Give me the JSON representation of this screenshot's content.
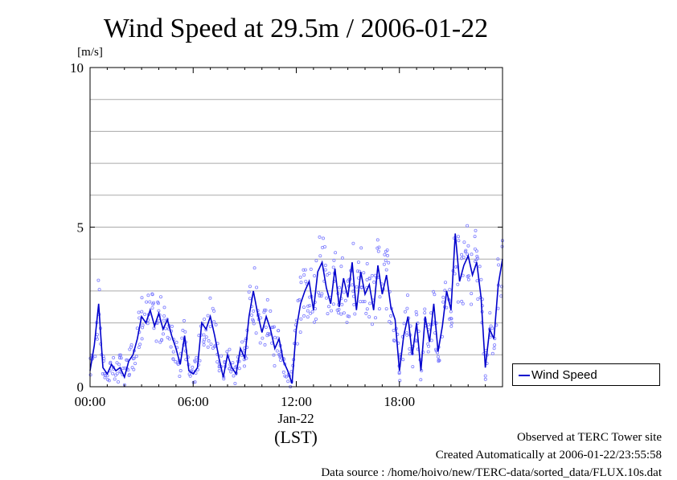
{
  "chart_data": {
    "type": "scatter",
    "title": "Wind Speed at 29.5m / 2006-01-22",
    "ylabel": "[m/s]",
    "xlabel": "(LST)",
    "date_label": "Jan-22",
    "ylim": [
      0,
      10
    ],
    "xlim": [
      "00:00",
      "24:00"
    ],
    "y_ticks": [
      "0",
      "5",
      "10"
    ],
    "x_ticks": [
      "00:00",
      "06:00",
      "12:00",
      "18:00"
    ],
    "grid": "horizontal, every 1 m/s",
    "legend_position": "right",
    "colors": {
      "line": "#0000cc",
      "points": "#7f7fff",
      "grid": "#aaaaaa"
    },
    "series": [
      {
        "name": "Wind Speed",
        "x_hours": [
          0.0,
          0.25,
          0.5,
          0.75,
          1.0,
          1.25,
          1.5,
          1.75,
          2.0,
          2.25,
          2.5,
          2.75,
          3.0,
          3.25,
          3.5,
          3.75,
          4.0,
          4.25,
          4.5,
          4.75,
          5.0,
          5.25,
          5.5,
          5.75,
          6.0,
          6.25,
          6.5,
          6.75,
          7.0,
          7.25,
          7.5,
          7.75,
          8.0,
          8.25,
          8.5,
          8.75,
          9.0,
          9.25,
          9.5,
          9.75,
          10.0,
          10.25,
          10.5,
          10.75,
          11.0,
          11.25,
          11.5,
          11.75,
          12.0,
          12.25,
          12.5,
          12.75,
          13.0,
          13.25,
          13.5,
          13.75,
          14.0,
          14.25,
          14.5,
          14.75,
          15.0,
          15.25,
          15.5,
          15.75,
          16.0,
          16.25,
          16.5,
          16.75,
          17.0,
          17.25,
          17.5,
          17.75,
          18.0,
          18.25,
          18.5,
          18.75,
          19.0,
          19.25,
          19.5,
          19.75,
          20.0,
          20.25,
          20.5,
          20.75,
          21.0,
          21.25,
          21.5,
          21.75,
          22.0,
          22.25,
          22.5,
          22.75,
          23.0,
          23.25,
          23.5,
          23.75,
          24.0
        ],
        "values": [
          0.5,
          1.3,
          2.6,
          0.6,
          0.4,
          0.7,
          0.5,
          0.6,
          0.3,
          0.8,
          1.0,
          1.5,
          2.2,
          2.0,
          2.4,
          1.9,
          2.3,
          1.8,
          2.1,
          1.6,
          1.2,
          0.7,
          1.6,
          0.5,
          0.4,
          0.6,
          2.0,
          1.8,
          2.2,
          1.6,
          0.9,
          0.3,
          1.0,
          0.6,
          0.4,
          1.2,
          0.9,
          2.2,
          3.0,
          2.3,
          1.7,
          2.2,
          1.8,
          1.2,
          1.5,
          0.8,
          0.5,
          0.1,
          1.8,
          2.6,
          3.0,
          3.3,
          2.4,
          3.6,
          3.9,
          3.1,
          2.6,
          3.7,
          2.5,
          3.4,
          2.8,
          3.9,
          2.4,
          3.6,
          2.9,
          3.2,
          2.4,
          3.8,
          2.9,
          3.5,
          2.5,
          2.1,
          0.5,
          1.6,
          2.2,
          1.0,
          2.0,
          0.5,
          2.2,
          1.4,
          2.6,
          1.1,
          1.9,
          3.0,
          2.4,
          4.8,
          3.3,
          3.8,
          4.1,
          3.5,
          3.9,
          2.8,
          0.6,
          1.8,
          1.5,
          3.2,
          4.0
        ]
      }
    ]
  },
  "footer": {
    "observed": "Observed at TERC Tower site",
    "created": "Created Automatically at 2006-01-22/23:55:58",
    "source": "Data source : /home/hoivo/new/TERC-data/sorted_data/FLUX.10s.dat"
  }
}
